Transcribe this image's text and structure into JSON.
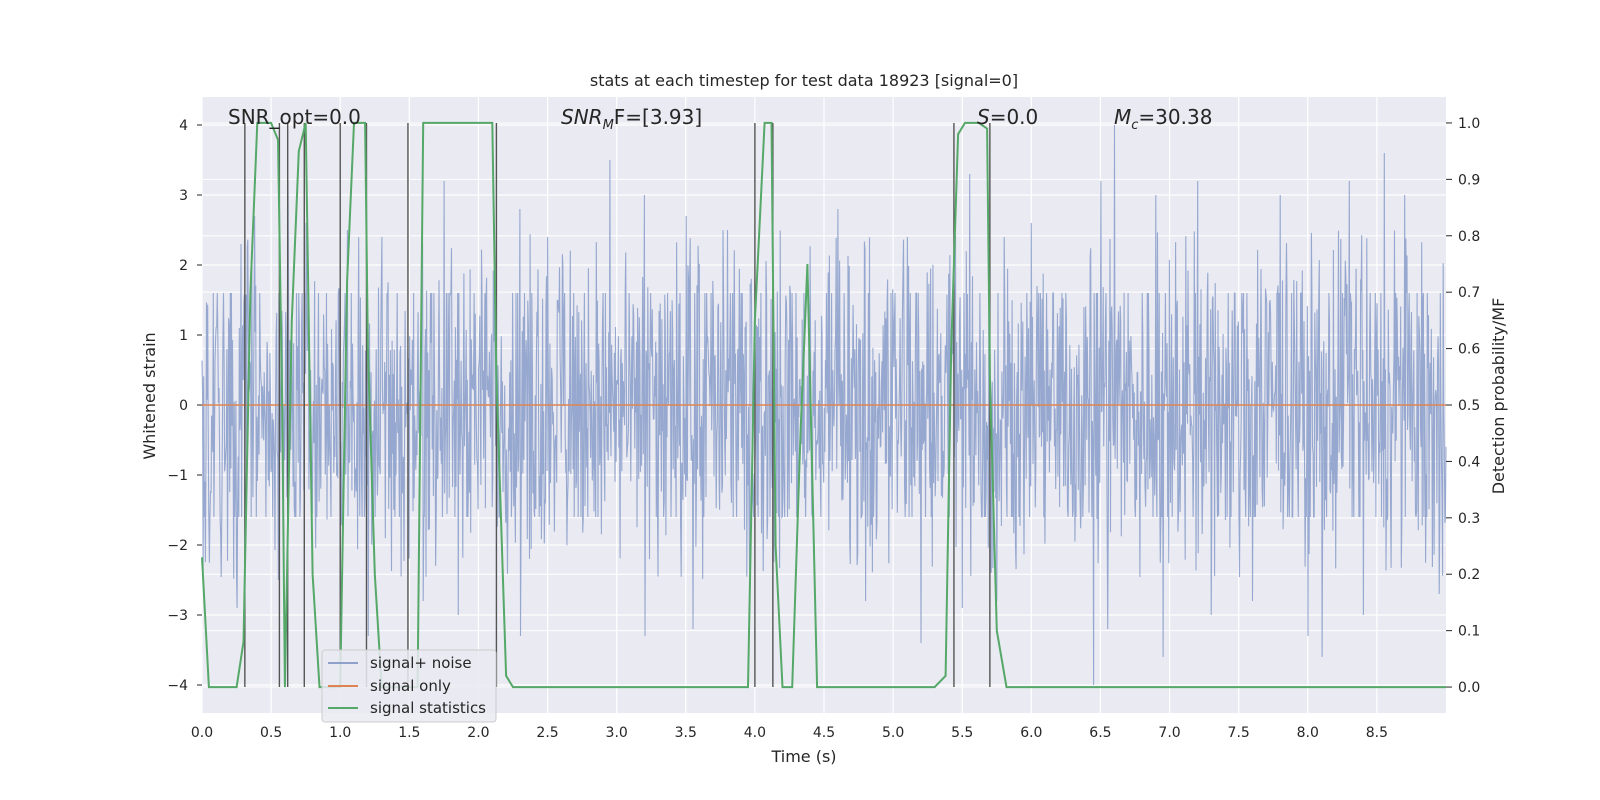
{
  "chart_data": {
    "type": "line",
    "title": "stats at each timestep for test data 18923 [signal=0]",
    "xlabel": "Time (s)",
    "ylabel": "Whitened strain",
    "y2label": "Detection probability/MF",
    "xlim": [
      0.0,
      9.0
    ],
    "ylim": [
      -4.4,
      4.4
    ],
    "y2lim": [
      -0.046,
      1.046
    ],
    "x_ticks": [
      0.0,
      0.5,
      1.0,
      1.5,
      2.0,
      2.5,
      3.0,
      3.5,
      4.0,
      4.5,
      5.0,
      5.5,
      6.0,
      6.5,
      7.0,
      7.5,
      8.0,
      8.5
    ],
    "x_tick_labels": [
      "0.0",
      "0.5",
      "1.0",
      "1.5",
      "2.0",
      "2.5",
      "3.0",
      "3.5",
      "4.0",
      "4.5",
      "5.0",
      "5.5",
      "6.0",
      "6.5",
      "7.0",
      "7.5",
      "8.0",
      "8.5"
    ],
    "y_ticks": [
      4,
      3,
      2,
      1,
      0,
      -1,
      -2,
      -3,
      -4
    ],
    "y_tick_labels": [
      "4",
      "3",
      "2",
      "1",
      "0",
      "−1",
      "−2",
      "−3",
      "−4"
    ],
    "y2_ticks": [
      1.0,
      0.9,
      0.8,
      0.7,
      0.6,
      0.5,
      0.4,
      0.3,
      0.2,
      0.1,
      0.0
    ],
    "y2_tick_labels": [
      "1.0",
      "0.9",
      "0.8",
      "0.7",
      "0.6",
      "0.5",
      "0.4",
      "0.3",
      "0.2",
      "0.1",
      "0.0"
    ],
    "grid": true,
    "legend_position": "lower-left",
    "annotations": {
      "snr_opt": "SNR_opt=0.0",
      "snr_mf_main": "SNR",
      "snr_mf_sub": "M",
      "snr_mf_rest": "F=[3.93]",
      "s_main": "S",
      "s_rest": "=0.0",
      "mc_main": "M",
      "mc_sub": "c",
      "mc_rest": "=30.38"
    },
    "series": [
      {
        "name": "signal+ noise",
        "axis": "left",
        "color": "#8da1cb",
        "description_of_values": "dense noise trace sampled across 0–9 s",
        "noise_band_abs": 1.6,
        "peak_events": [
          [
            0.28,
            2.3
          ],
          [
            0.38,
            2.7
          ],
          [
            0.62,
            3.2
          ],
          [
            0.75,
            2.6
          ],
          [
            1.05,
            2.5
          ],
          [
            1.3,
            2.4
          ],
          [
            1.75,
            3.2
          ],
          [
            2.3,
            2.8
          ],
          [
            2.5,
            2.4
          ],
          [
            2.95,
            3.5
          ],
          [
            3.2,
            3.0
          ],
          [
            3.5,
            2.7
          ],
          [
            3.8,
            2.5
          ],
          [
            4.6,
            2.8
          ],
          [
            5.1,
            2.4
          ],
          [
            5.55,
            3.3
          ],
          [
            5.8,
            2.4
          ],
          [
            6.0,
            2.6
          ],
          [
            6.5,
            3.2
          ],
          [
            6.6,
            4.0
          ],
          [
            6.9,
            3.0
          ],
          [
            7.2,
            3.2
          ],
          [
            7.8,
            3.0
          ],
          [
            8.3,
            3.2
          ],
          [
            8.55,
            3.6
          ],
          [
            8.7,
            3.0
          ],
          [
            0.25,
            -2.9
          ],
          [
            0.55,
            -2.5
          ],
          [
            1.2,
            -3.3
          ],
          [
            1.6,
            -2.8
          ],
          [
            1.85,
            -3.0
          ],
          [
            2.3,
            -3.3
          ],
          [
            3.2,
            -3.3
          ],
          [
            3.55,
            -3.2
          ],
          [
            4.8,
            -2.8
          ],
          [
            5.2,
            -3.4
          ],
          [
            5.5,
            -2.9
          ],
          [
            5.75,
            -2.8
          ],
          [
            6.45,
            -4.0
          ],
          [
            6.55,
            -3.2
          ],
          [
            6.95,
            -3.6
          ],
          [
            7.3,
            -3.0
          ],
          [
            7.6,
            -2.8
          ],
          [
            8.0,
            -3.3
          ],
          [
            8.1,
            -3.6
          ],
          [
            8.4,
            -3.0
          ],
          [
            8.95,
            -2.7
          ]
        ]
      },
      {
        "name": "signal only",
        "axis": "left",
        "color": "#dd8452",
        "x": [
          0.0,
          9.0
        ],
        "y": [
          0.0,
          0.0
        ]
      },
      {
        "name": "signal statistics",
        "axis": "right",
        "color": "#55a868",
        "x": [
          0.0,
          0.05,
          0.25,
          0.3,
          0.35,
          0.4,
          0.5,
          0.55,
          0.58,
          0.6,
          0.65,
          0.7,
          0.75,
          0.8,
          0.85,
          0.95,
          1.0,
          1.05,
          1.1,
          1.18,
          1.2,
          1.25,
          1.3,
          1.35,
          1.4,
          1.5,
          1.56,
          1.6,
          1.8,
          2.0,
          2.1,
          2.13,
          2.2,
          2.25,
          2.3,
          2.5,
          3.0,
          3.5,
          3.95,
          4.0,
          4.07,
          4.12,
          4.15,
          4.2,
          4.27,
          4.33,
          4.38,
          4.45,
          4.5,
          4.7,
          5.0,
          5.1,
          5.3,
          5.38,
          5.42,
          5.47,
          5.52,
          5.58,
          5.62,
          5.68,
          5.7,
          5.75,
          5.82,
          5.9,
          6.0,
          6.1,
          6.5,
          7.0,
          7.5,
          8.0,
          8.5,
          9.0
        ],
        "y": [
          0.23,
          0.0,
          0.0,
          0.08,
          0.7,
          1.0,
          1.0,
          0.97,
          0.5,
          0.0,
          0.65,
          0.95,
          1.0,
          0.2,
          0.0,
          0.0,
          0.0,
          0.72,
          1.0,
          1.0,
          0.6,
          0.2,
          0.0,
          0.0,
          0.0,
          0.0,
          0.0,
          1.0,
          1.0,
          1.0,
          1.0,
          0.55,
          0.02,
          0.0,
          0.0,
          0.0,
          0.0,
          0.0,
          0.0,
          0.65,
          1.0,
          1.0,
          0.25,
          0.0,
          0.0,
          0.45,
          0.75,
          0.0,
          0.0,
          0.0,
          0.0,
          0.0,
          0.0,
          0.02,
          0.6,
          0.98,
          1.0,
          1.0,
          1.0,
          0.99,
          0.55,
          0.1,
          0.0,
          0.0,
          0.0,
          0.0,
          0.0,
          0.0,
          0.0,
          0.0,
          0.0,
          0.0
        ]
      }
    ],
    "vertical_lines_x": [
      0.31,
      0.56,
      0.62,
      0.74,
      1.0,
      1.19,
      1.49,
      2.13,
      4.0,
      4.13,
      5.44,
      5.7
    ],
    "vertical_line_color": "#555555"
  },
  "legend": {
    "items": [
      {
        "label": "signal+ noise",
        "color": "#8da1cb"
      },
      {
        "label": "signal only",
        "color": "#dd8452"
      },
      {
        "label": "signal statistics",
        "color": "#55a868"
      }
    ]
  }
}
